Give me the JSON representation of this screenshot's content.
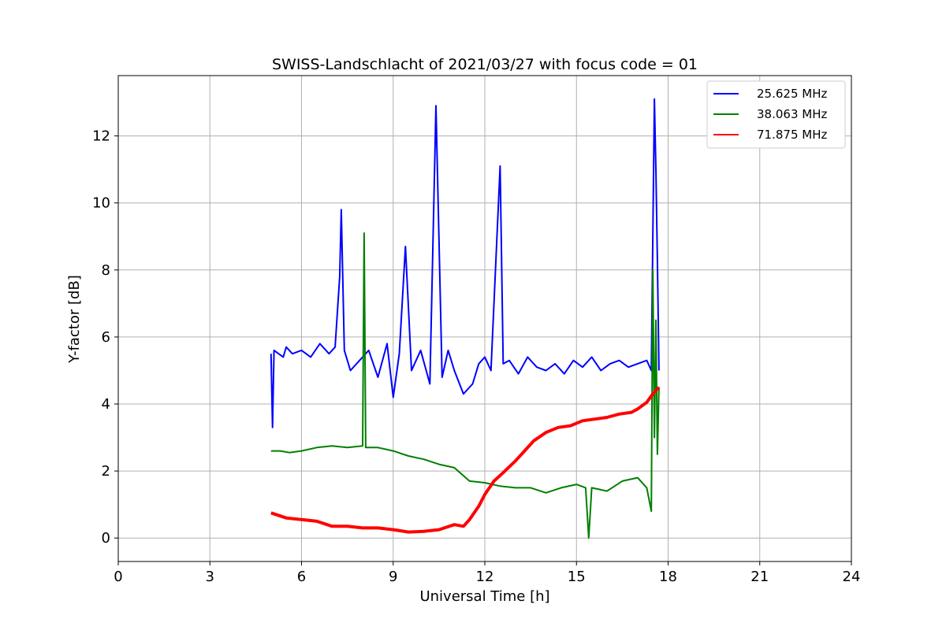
{
  "chart_data": {
    "type": "line",
    "title": "SWISS-Landschlacht of 2021/03/27 with focus code = 01",
    "xlabel": "Universal Time [h]",
    "ylabel": "Y-factor [dB]",
    "xlim": [
      0,
      24
    ],
    "ylim": [
      -0.7,
      13.8
    ],
    "xticks": [
      0,
      3,
      6,
      9,
      12,
      15,
      18,
      21,
      24
    ],
    "yticks": [
      0,
      2,
      4,
      6,
      8,
      10,
      12
    ],
    "grid": true,
    "legend_position": "top-right",
    "series": [
      {
        "name": "25.625 MHz",
        "color": "#0000ff",
        "x": [
          5.0,
          5.05,
          5.1,
          5.4,
          5.5,
          5.7,
          6.0,
          6.3,
          6.6,
          6.9,
          7.1,
          7.25,
          7.3,
          7.4,
          7.6,
          7.9,
          8.2,
          8.5,
          8.8,
          9.0,
          9.2,
          9.4,
          9.6,
          9.9,
          10.2,
          10.4,
          10.6,
          10.8,
          11.0,
          11.3,
          11.6,
          11.8,
          12.0,
          12.2,
          12.5,
          12.6,
          12.8,
          13.1,
          13.4,
          13.7,
          14.0,
          14.3,
          14.6,
          14.9,
          15.2,
          15.5,
          15.8,
          16.1,
          16.4,
          16.7,
          17.0,
          17.3,
          17.45,
          17.55,
          17.6,
          17.65,
          17.7
        ],
        "y": [
          5.5,
          3.3,
          5.6,
          5.4,
          5.7,
          5.5,
          5.6,
          5.4,
          5.8,
          5.5,
          5.7,
          7.8,
          9.8,
          5.6,
          5.0,
          5.3,
          5.6,
          4.8,
          5.8,
          4.2,
          5.5,
          8.7,
          5.0,
          5.6,
          4.6,
          12.9,
          4.8,
          5.6,
          5.0,
          4.3,
          4.6,
          5.2,
          5.4,
          5.0,
          11.1,
          5.2,
          5.3,
          4.9,
          5.4,
          5.1,
          5.0,
          5.2,
          4.9,
          5.3,
          5.1,
          5.4,
          5.0,
          5.2,
          5.3,
          5.1,
          5.2,
          5.3,
          5.0,
          13.1,
          11.0,
          8.3,
          5.0
        ]
      },
      {
        "name": "38.063 MHz",
        "color": "#008000",
        "x": [
          5.0,
          5.3,
          5.6,
          6.0,
          6.5,
          7.0,
          7.5,
          8.0,
          8.05,
          8.1,
          8.5,
          9.0,
          9.5,
          10.0,
          10.5,
          11.0,
          11.5,
          12.0,
          12.5,
          13.0,
          13.5,
          14.0,
          14.5,
          15.0,
          15.3,
          15.4,
          15.5,
          16.0,
          16.5,
          17.0,
          17.3,
          17.45,
          17.5,
          17.55,
          17.6,
          17.65,
          17.7
        ],
        "y": [
          2.6,
          2.6,
          2.55,
          2.6,
          2.7,
          2.75,
          2.7,
          2.75,
          9.1,
          2.7,
          2.7,
          2.6,
          2.45,
          2.35,
          2.2,
          2.1,
          1.7,
          1.65,
          1.55,
          1.5,
          1.5,
          1.35,
          1.5,
          1.6,
          1.5,
          0.0,
          1.5,
          1.4,
          1.7,
          1.8,
          1.5,
          0.8,
          8.0,
          3.0,
          6.5,
          2.5,
          4.5
        ]
      },
      {
        "name": "71.875 MHz",
        "color": "#ff0000",
        "x": [
          5.0,
          5.5,
          6.0,
          6.5,
          7.0,
          7.5,
          8.0,
          8.5,
          9.0,
          9.5,
          10.0,
          10.5,
          11.0,
          11.3,
          11.5,
          11.8,
          12.0,
          12.3,
          12.6,
          13.0,
          13.3,
          13.6,
          14.0,
          14.4,
          14.8,
          15.2,
          15.6,
          16.0,
          16.4,
          16.8,
          17.0,
          17.3,
          17.5,
          17.7
        ],
        "y": [
          0.75,
          0.6,
          0.55,
          0.5,
          0.35,
          0.35,
          0.3,
          0.3,
          0.25,
          0.18,
          0.2,
          0.25,
          0.4,
          0.35,
          0.55,
          0.95,
          1.3,
          1.7,
          1.95,
          2.3,
          2.6,
          2.9,
          3.15,
          3.3,
          3.35,
          3.5,
          3.55,
          3.6,
          3.7,
          3.75,
          3.85,
          4.05,
          4.3,
          4.5
        ]
      }
    ]
  }
}
